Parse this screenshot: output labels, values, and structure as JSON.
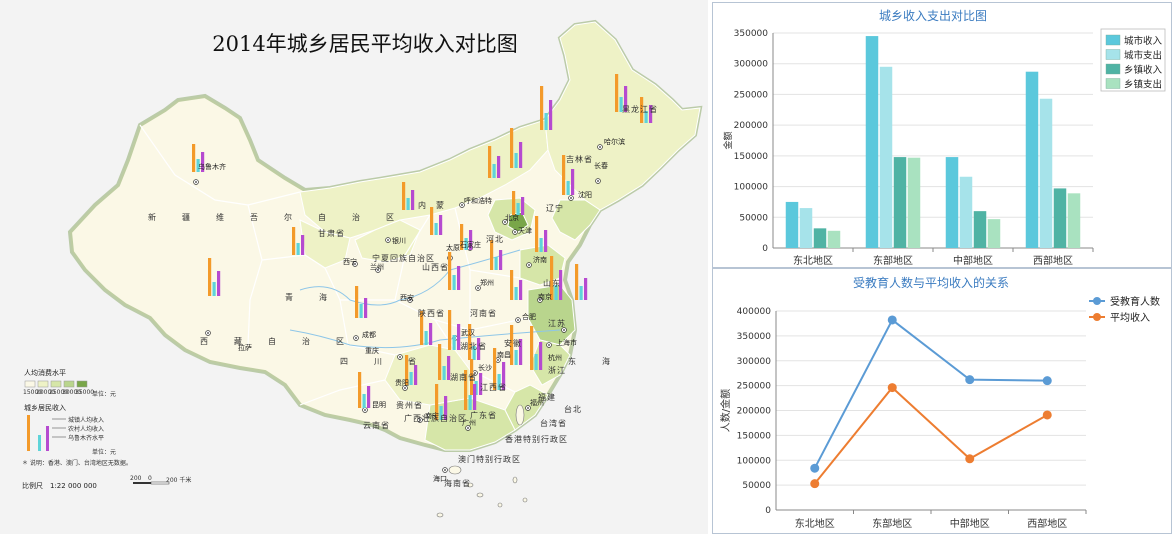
{
  "map": {
    "title": "2014年城乡居民平均收入对比图",
    "legend_consumption_title": "人均消费水平",
    "legend_consumption_levels": [
      "15000",
      "20000",
      "25000",
      "30000",
      "35000"
    ],
    "legend_unit": "单位：元",
    "legend_income_title": "城乡居民收入",
    "legend_income_items": [
      "城镇人均收入",
      "农村人均收入",
      "乌鲁木齐水平"
    ],
    "legend_note": "＊ 说明：香港、澳门、台湾地区无数据。",
    "scale_label": "比例尺　1:22 000 000",
    "scale_ticks": [
      "200",
      "0",
      "200 千米"
    ],
    "colors": {
      "level1": "#fbf8e6",
      "level2": "#eef2c6",
      "level3": "#d6e6a8",
      "level4": "#b9d58d",
      "level5": "#79a649",
      "sea": "#f3f3f3",
      "border": "#ffffff",
      "outline": "#8daa6a",
      "river": "#8ec6e8",
      "bar_orange": "#f39a2a",
      "bar_teal": "#5ed4d9",
      "bar_purple": "#b64ad0"
    },
    "province_labels": [
      "新　疆　维　吾　尔　自　治　区",
      "西　藏　自　治　区",
      "青　海",
      "四　川　省",
      "内　蒙",
      "黑龙江省",
      "吉林省",
      "辽宁",
      "甘肃省",
      "宁夏回族自治区",
      "山西省",
      "陕西省",
      "河南省",
      "湖北省",
      "湖南省",
      "贵州省",
      "云南省",
      "广西壮族自治区",
      "广东省",
      "福建",
      "浙江",
      "安徽",
      "江西省",
      "江苏",
      "山东",
      "河北",
      "澳门特别行政区",
      "香港特别行政区",
      "台湾省",
      "海南省",
      "东　海",
      "台北"
    ],
    "city_labels": [
      "乌鲁木齐",
      "拉萨",
      "西宁",
      "兰州",
      "成都",
      "昆明",
      "哈尔滨",
      "长春",
      "沈阳",
      "呼和浩特",
      "北京",
      "太原",
      "石家庄",
      "济南",
      "郑州",
      "西安",
      "武汉",
      "长沙",
      "南昌",
      "杭州",
      "上海市",
      "福州",
      "广州",
      "南宁",
      "海口",
      "贵阳",
      "重庆",
      "合肥",
      "南京",
      "银川",
      "天津"
    ]
  },
  "chart1": {
    "title": "城乡收入支出对比图",
    "ylabel": "金额",
    "ylim": [
      0,
      350000
    ],
    "yticks": [
      "0",
      "50000",
      "100000",
      "150000",
      "200000",
      "250000",
      "300000",
      "350000"
    ],
    "legend_position": "right"
  },
  "chart2": {
    "title": "受教育人数与平均收入的关系",
    "ylabel": "人数/金额",
    "ylim": [
      0,
      400000
    ],
    "yticks": [
      "0",
      "50000",
      "100000",
      "150000",
      "200000",
      "250000",
      "300000",
      "350000",
      "400000"
    ],
    "legend_position": "right"
  },
  "chart_data": [
    {
      "type": "bar",
      "title": "城乡收入支出对比图",
      "xlabel": "",
      "ylabel": "金额",
      "ylim": [
        0,
        350000
      ],
      "grid": true,
      "legend": "right",
      "categories": [
        "东北地区",
        "东部地区",
        "中部地区",
        "西部地区"
      ],
      "series": [
        {
          "name": "城市收入",
          "color": "#5bc8dc",
          "values": [
            75000,
            345000,
            148000,
            287000
          ]
        },
        {
          "name": "城市支出",
          "color": "#a6e3ea",
          "values": [
            65000,
            295000,
            116000,
            243000
          ]
        },
        {
          "name": "乡镇收入",
          "color": "#4fb3a4",
          "values": [
            32000,
            148000,
            60000,
            97000
          ]
        },
        {
          "name": "乡镇支出",
          "color": "#a9e2c0",
          "values": [
            28000,
            147000,
            47000,
            89000
          ]
        }
      ]
    },
    {
      "type": "line",
      "title": "受教育人数与平均收入的关系",
      "xlabel": "",
      "ylabel": "人数/金额",
      "ylim": [
        0,
        400000
      ],
      "grid": true,
      "legend": "right",
      "categories": [
        "东北地区",
        "东部地区",
        "中部地区",
        "西部地区"
      ],
      "series": [
        {
          "name": "受教育人数",
          "color": "#5b9bd5",
          "values": [
            84000,
            382000,
            262000,
            260000
          ]
        },
        {
          "name": "平均收入",
          "color": "#ed7d31",
          "values": [
            53000,
            246000,
            103000,
            191000
          ]
        }
      ]
    }
  ]
}
